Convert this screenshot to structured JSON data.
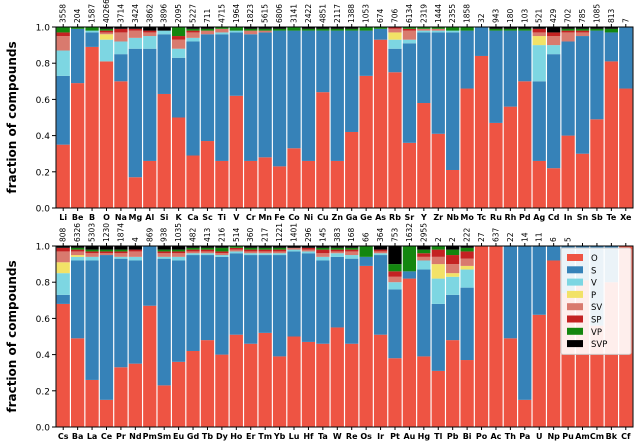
{
  "chart_data": [
    {
      "type": "bar",
      "stacked": true,
      "ylabel": "fraction of compounds",
      "ylim": [
        0,
        1
      ],
      "yticks": [
        "0.0",
        "0.2",
        "0.4",
        "0.6",
        "0.8",
        "1.0"
      ],
      "categories": [
        "Li",
        "Be",
        "B",
        "O",
        "Na",
        "Mg",
        "Al",
        "Si",
        "K",
        "Ca",
        "Sc",
        "Ti",
        "V",
        "Cr",
        "Mn",
        "Fe",
        "Co",
        "Ni",
        "Cu",
        "Zn",
        "Ga",
        "Ge",
        "As",
        "Rb",
        "Sr",
        "Y",
        "Zr",
        "Nb",
        "Mo",
        "Tc",
        "Ru",
        "Rh",
        "Pd",
        "Ag",
        "Cd",
        "In",
        "Sn",
        "Sb",
        "Te",
        "Xe"
      ],
      "counts": [
        "3558",
        "204",
        "1587",
        "40266",
        "3714",
        "3424",
        "3862",
        "3896",
        "2095",
        "5227",
        "711",
        "4715",
        "1964",
        "1823",
        "5615",
        "6806",
        "3141",
        "2422",
        "4851",
        "2117",
        "1388",
        "1053",
        "674",
        "706",
        "6134",
        "2319",
        "1444",
        "2355",
        "1858",
        "32",
        "943",
        "180",
        "103",
        "521",
        "429",
        "702",
        "785",
        "1085",
        "813",
        "7"
      ],
      "series": [
        {
          "name": "O",
          "values": [
            0.35,
            0.69,
            0.89,
            0.81,
            0.7,
            0.17,
            0.26,
            0.63,
            0.5,
            0.29,
            0.37,
            0.26,
            0.62,
            0.26,
            0.28,
            0.23,
            0.33,
            0.26,
            0.64,
            0.26,
            0.42,
            0.73,
            0.93,
            0.75,
            0.36,
            0.58,
            0.41,
            0.21,
            0.66,
            0.84,
            0.47,
            0.56,
            0.7,
            0.26,
            0.22,
            0.4,
            0.3,
            0.49,
            0.81,
            0.66
          ]
        },
        {
          "name": "S",
          "values": [
            0.38,
            0.3,
            0.08,
            0.0,
            0.15,
            0.71,
            0.62,
            0.33,
            0.33,
            0.63,
            0.59,
            0.7,
            0.35,
            0.7,
            0.69,
            0.75,
            0.65,
            0.72,
            0.34,
            0.72,
            0.56,
            0.25,
            0.06,
            0.13,
            0.55,
            0.39,
            0.56,
            0.76,
            0.32,
            0.16,
            0.51,
            0.42,
            0.28,
            0.44,
            0.63,
            0.52,
            0.65,
            0.49,
            0.16,
            0.34
          ]
        },
        {
          "name": "V",
          "values": [
            0.14,
            0.0,
            0.01,
            0.12,
            0.07,
            0.06,
            0.07,
            0.02,
            0.05,
            0.02,
            0.0,
            0.01,
            0.01,
            0.0,
            0.0,
            0.0,
            0.0,
            0.0,
            0.0,
            0.0,
            0.0,
            0.0,
            0.0,
            0.05,
            0.02,
            0.01,
            0.01,
            0.01,
            0.0,
            0.0,
            0.0,
            0.0,
            0.0,
            0.2,
            0.05,
            0.0,
            0.0,
            0.0,
            0.0,
            0.0
          ]
        },
        {
          "name": "P",
          "values": [
            0.0,
            0.0,
            0.0,
            0.03,
            0.0,
            0.0,
            0.0,
            0.0,
            0.0,
            0.0,
            0.0,
            0.0,
            0.0,
            0.0,
            0.0,
            0.0,
            0.0,
            0.0,
            0.0,
            0.0,
            0.0,
            0.0,
            0.0,
            0.04,
            0.0,
            0.0,
            0.0,
            0.0,
            0.0,
            0.0,
            0.0,
            0.0,
            0.0,
            0.05,
            0.0,
            0.0,
            0.0,
            0.0,
            0.0,
            0.0
          ]
        },
        {
          "name": "SV",
          "values": [
            0.08,
            0.0,
            0.0,
            0.01,
            0.05,
            0.04,
            0.02,
            0.0,
            0.05,
            0.03,
            0.02,
            0.02,
            0.0,
            0.02,
            0.01,
            0.0,
            0.0,
            0.0,
            0.0,
            0.0,
            0.0,
            0.0,
            0.0,
            0.02,
            0.05,
            0.01,
            0.01,
            0.0,
            0.0,
            0.0,
            0.0,
            0.0,
            0.0,
            0.02,
            0.05,
            0.05,
            0.02,
            0.0,
            0.0,
            0.0
          ]
        },
        {
          "name": "SP",
          "values": [
            0.02,
            0.0,
            0.0,
            0.01,
            0.02,
            0.01,
            0.01,
            0.0,
            0.02,
            0.01,
            0.0,
            0.0,
            0.0,
            0.0,
            0.0,
            0.0,
            0.0,
            0.0,
            0.0,
            0.0,
            0.0,
            0.0,
            0.0,
            0.01,
            0.01,
            0.0,
            0.0,
            0.0,
            0.0,
            0.0,
            0.0,
            0.0,
            0.0,
            0.02,
            0.02,
            0.01,
            0.01,
            0.0,
            0.0,
            0.0
          ]
        },
        {
          "name": "VP",
          "values": [
            0.03,
            0.01,
            0.02,
            0.01,
            0.0,
            0.0,
            0.0,
            0.0,
            0.05,
            0.01,
            0.01,
            0.01,
            0.02,
            0.01,
            0.01,
            0.01,
            0.02,
            0.01,
            0.01,
            0.01,
            0.01,
            0.02,
            0.01,
            0.0,
            0.01,
            0.01,
            0.01,
            0.02,
            0.02,
            0.0,
            0.01,
            0.01,
            0.01,
            0.0,
            0.0,
            0.01,
            0.01,
            0.01,
            0.02,
            0.0
          ]
        },
        {
          "name": "SVP",
          "values": [
            0.0,
            0.0,
            0.0,
            0.01,
            0.01,
            0.01,
            0.02,
            0.02,
            0.0,
            0.01,
            0.01,
            0.0,
            0.0,
            0.01,
            0.01,
            0.01,
            0.0,
            0.01,
            0.01,
            0.01,
            0.01,
            0.0,
            0.0,
            0.0,
            0.0,
            0.0,
            0.0,
            0.0,
            0.0,
            0.0,
            0.01,
            0.01,
            0.01,
            0.01,
            0.03,
            0.01,
            0.01,
            0.01,
            0.01,
            0.0
          ]
        }
      ]
    },
    {
      "type": "bar",
      "stacked": true,
      "ylabel": "fraction of compounds",
      "ylim": [
        0,
        1
      ],
      "yticks": [
        "0.0",
        "0.2",
        "0.4",
        "0.6",
        "0.8",
        "1.0"
      ],
      "categories": [
        "Cs",
        "Ba",
        "La",
        "Ce",
        "Pr",
        "Nd",
        "Pm",
        "Sm",
        "Eu",
        "Gd",
        "Tb",
        "Dy",
        "Ho",
        "Er",
        "Tm",
        "Yb",
        "Lu",
        "Hf",
        "Ta",
        "W",
        "Re",
        "Os",
        "Ir",
        "Pt",
        "Au",
        "Hg",
        "Tl",
        "Pb",
        "Bi",
        "Po",
        "Ac",
        "Th",
        "Pa",
        "U",
        "Np",
        "Pu",
        "Am",
        "Cm",
        "Bk",
        "Cf"
      ],
      "counts": [
        "808",
        "6326",
        "5303",
        "1230",
        "1874",
        "4",
        "869",
        "938",
        "1035",
        "482",
        "413",
        "216",
        "514",
        "360",
        "217",
        "1221",
        "1401",
        "296",
        "145",
        "383",
        "168",
        "66",
        "364",
        "753",
        "1632",
        "2955",
        "2",
        "2",
        "222",
        "27",
        "637",
        "22",
        "14",
        "11",
        "6",
        "5",
        "",
        "",
        "",
        ""
      ],
      "legend": {
        "position": "right",
        "entries": [
          "O",
          "S",
          "V",
          "P",
          "SV",
          "SP",
          "VP",
          "SVP"
        ]
      },
      "series": [
        {
          "name": "O",
          "values": [
            0.68,
            0.49,
            0.26,
            0.15,
            0.33,
            0.35,
            0.67,
            0.23,
            0.36,
            0.42,
            0.48,
            0.4,
            0.51,
            0.46,
            0.52,
            0.39,
            0.5,
            0.47,
            0.46,
            0.55,
            0.46,
            0.89,
            0.51,
            0.38,
            0.82,
            0.39,
            0.31,
            0.48,
            0.37,
            1.0,
            1.0,
            0.49,
            0.15,
            0.62,
            0.92,
            0.74,
            0.81,
            0.56,
            0.8,
            1.0
          ]
        },
        {
          "name": "S",
          "values": [
            0.05,
            0.43,
            0.66,
            0.8,
            0.6,
            0.57,
            0.33,
            0.7,
            0.56,
            0.53,
            0.47,
            0.54,
            0.45,
            0.49,
            0.43,
            0.56,
            0.47,
            0.49,
            0.46,
            0.39,
            0.47,
            0.05,
            0.44,
            0.38,
            0.04,
            0.48,
            0.37,
            0.25,
            0.4,
            0.0,
            0.0,
            0.51,
            0.85,
            0.38,
            0.08,
            0.26,
            0.19,
            0.44,
            0.2,
            0.0
          ]
        },
        {
          "name": "V",
          "values": [
            0.12,
            0.02,
            0.02,
            0.0,
            0.01,
            0.02,
            0.0,
            0.01,
            0.02,
            0.01,
            0.01,
            0.01,
            0.01,
            0.01,
            0.01,
            0.01,
            0.01,
            0.01,
            0.02,
            0.02,
            0.02,
            0.0,
            0.01,
            0.04,
            0.0,
            0.05,
            0.14,
            0.1,
            0.1,
            0.0,
            0.0,
            0.0,
            0.0,
            0.0,
            0.0,
            0.0,
            0.0,
            0.0,
            0.0,
            0.0
          ]
        },
        {
          "name": "P",
          "values": [
            0.06,
            0.01,
            0.0,
            0.0,
            0.0,
            0.0,
            0.0,
            0.0,
            0.0,
            0.0,
            0.0,
            0.0,
            0.0,
            0.0,
            0.0,
            0.0,
            0.0,
            0.0,
            0.0,
            0.0,
            0.0,
            0.0,
            0.0,
            0.0,
            0.0,
            0.0,
            0.08,
            0.02,
            0.02,
            0.0,
            0.0,
            0.0,
            0.0,
            0.0,
            0.0,
            0.0,
            0.0,
            0.0,
            0.0,
            0.0
          ]
        },
        {
          "name": "SV",
          "values": [
            0.06,
            0.02,
            0.02,
            0.01,
            0.02,
            0.03,
            0.0,
            0.02,
            0.02,
            0.01,
            0.01,
            0.01,
            0.01,
            0.01,
            0.01,
            0.01,
            0.01,
            0.01,
            0.02,
            0.01,
            0.02,
            0.0,
            0.01,
            0.03,
            0.0,
            0.02,
            0.04,
            0.05,
            0.04,
            0.0,
            0.0,
            0.0,
            0.0,
            0.0,
            0.0,
            0.0,
            0.0,
            0.0,
            0.0,
            0.0
          ]
        },
        {
          "name": "SP",
          "values": [
            0.02,
            0.01,
            0.01,
            0.01,
            0.01,
            0.01,
            0.0,
            0.01,
            0.01,
            0.01,
            0.01,
            0.01,
            0.01,
            0.01,
            0.01,
            0.01,
            0.0,
            0.01,
            0.02,
            0.01,
            0.01,
            0.0,
            0.01,
            0.03,
            0.0,
            0.02,
            0.04,
            0.05,
            0.04,
            0.0,
            0.0,
            0.0,
            0.0,
            0.0,
            0.0,
            0.0,
            0.0,
            0.0,
            0.0,
            0.0
          ]
        },
        {
          "name": "VP",
          "values": [
            0.0,
            0.01,
            0.01,
            0.01,
            0.01,
            0.0,
            0.0,
            0.01,
            0.01,
            0.01,
            0.01,
            0.02,
            0.01,
            0.01,
            0.01,
            0.01,
            0.0,
            0.0,
            0.01,
            0.01,
            0.01,
            0.06,
            0.0,
            0.04,
            0.14,
            0.02,
            0.04,
            0.03,
            0.02,
            0.0,
            0.0,
            0.0,
            0.0,
            0.0,
            0.0,
            0.0,
            0.0,
            0.0,
            0.0,
            0.0
          ]
        },
        {
          "name": "SVP",
          "values": [
            0.01,
            0.01,
            0.02,
            0.02,
            0.02,
            0.02,
            0.0,
            0.02,
            0.02,
            0.01,
            0.01,
            0.01,
            0.0,
            0.01,
            0.01,
            0.01,
            0.01,
            0.01,
            0.01,
            0.01,
            0.01,
            0.0,
            0.02,
            0.1,
            0.0,
            0.02,
            0.02,
            0.02,
            0.01,
            0.0,
            0.0,
            0.0,
            0.0,
            0.0,
            0.0,
            0.0,
            0.0,
            0.0,
            0.0,
            0.0
          ]
        }
      ]
    }
  ],
  "colors": {
    "O": "#ee5443",
    "S": "#3682b8",
    "V": "#7dd6e2",
    "P": "#f2e267",
    "SV": "#d97a6e",
    "SP": "#c42222",
    "VP": "#13860f",
    "SVP": "#000000"
  }
}
